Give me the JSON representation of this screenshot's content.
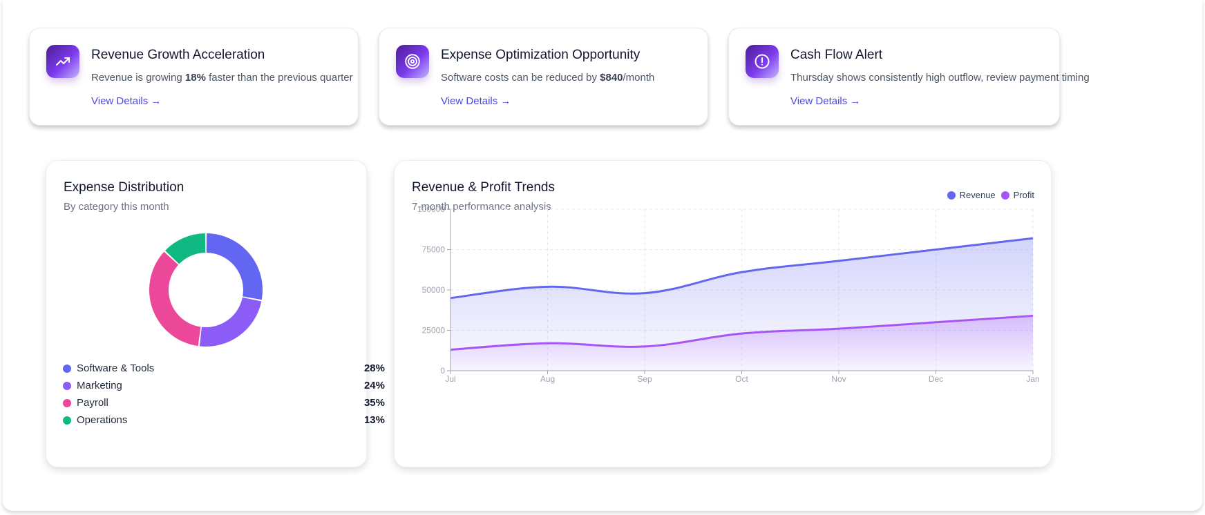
{
  "insights": [
    {
      "title": "Revenue Growth Acceleration",
      "desc_pre": "Revenue is growing ",
      "desc_bold": "18%",
      "desc_post": " faster than the previous quarter",
      "link": "View Details →",
      "icon": "trending-up-icon"
    },
    {
      "title": "Expense Optimization Opportunity",
      "desc_pre": "Software costs can be reduced by ",
      "desc_bold": "$840",
      "desc_post": "/month",
      "link": "View Details →",
      "icon": "target-icon"
    },
    {
      "title": "Cash Flow Alert",
      "desc_pre": "Thursday shows consistently high outflow, review payment timing",
      "desc_bold": "",
      "desc_post": "",
      "link": "View Details →",
      "icon": "alert-circle-icon"
    }
  ],
  "expense": {
    "title": "Expense Distribution",
    "subtitle": "By category this month",
    "items": [
      {
        "label": "Software & Tools",
        "pct_label": "28%",
        "value": 28,
        "color": "#6366f1"
      },
      {
        "label": "Marketing",
        "pct_label": "24%",
        "value": 24,
        "color": "#8b5cf6"
      },
      {
        "label": "Payroll",
        "pct_label": "35%",
        "value": 35,
        "color": "#ec4899"
      },
      {
        "label": "Operations",
        "pct_label": "13%",
        "value": 13,
        "color": "#10b981"
      }
    ]
  },
  "trends": {
    "title": "Revenue & Profit Trends",
    "subtitle": "7-month performance analysis",
    "legend": [
      {
        "name": "Revenue",
        "color": "#6366f1"
      },
      {
        "name": "Profit",
        "color": "#a855f7"
      }
    ]
  },
  "chart_data": [
    {
      "type": "pie",
      "title": "Expense Distribution",
      "categories": [
        "Software & Tools",
        "Marketing",
        "Payroll",
        "Operations"
      ],
      "values": [
        28,
        24,
        35,
        13
      ]
    },
    {
      "type": "area",
      "title": "Revenue & Profit Trends",
      "categories": [
        "Jul",
        "Aug",
        "Sep",
        "Oct",
        "Nov",
        "Dec",
        "Jan"
      ],
      "series": [
        {
          "name": "Revenue",
          "values": [
            45000,
            52000,
            48000,
            61000,
            68000,
            75000,
            82000
          ],
          "color": "#6366f1"
        },
        {
          "name": "Profit",
          "values": [
            13000,
            17000,
            15000,
            23000,
            26000,
            30000,
            34000
          ],
          "color": "#a855f7"
        }
      ],
      "ylim": [
        0,
        100000
      ],
      "yticks": [
        0,
        25000,
        50000,
        75000,
        100000
      ],
      "ytick_labels": [
        "0",
        "25000",
        "50000",
        "75000",
        "100000"
      ],
      "grid": true
    }
  ]
}
